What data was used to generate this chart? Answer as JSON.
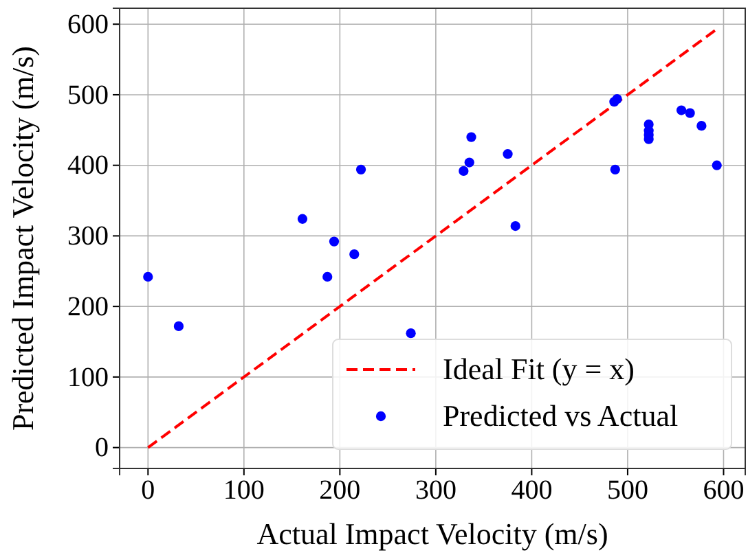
{
  "chart_data": {
    "type": "scatter",
    "xlabel": "Actual Impact Velocity (m/s)",
    "ylabel": "Predicted Impact Velocity (m/s)",
    "xlim": [
      -29.6,
      622.6
    ],
    "ylim": [
      -29.6,
      622.6
    ],
    "xticks": [
      0,
      100,
      200,
      300,
      400,
      500,
      600
    ],
    "yticks": [
      0,
      100,
      200,
      300,
      400,
      500,
      600
    ],
    "grid": true,
    "legend": "bottom right",
    "series": [
      {
        "name": "Ideal Fit (y = x)",
        "type": "line",
        "marker": "none",
        "line_style": "dashed",
        "color": "#ff0000",
        "x": [
          0,
          593
        ],
        "values": [
          0,
          593
        ]
      },
      {
        "name": "Predicted vs Actual",
        "marker": "circle",
        "color": "#0000ff",
        "x": [
          0,
          32,
          161,
          222,
          194,
          215,
          187,
          274,
          329,
          335,
          337,
          375,
          383,
          486,
          489,
          487,
          522,
          522,
          522,
          522,
          556,
          565,
          577,
          593
        ],
        "values": [
          242,
          172,
          324,
          394,
          292,
          274,
          242,
          162,
          392,
          404,
          440,
          416,
          314,
          490,
          494,
          394,
          458,
          449,
          443,
          437,
          478,
          474,
          456,
          400
        ]
      }
    ]
  }
}
